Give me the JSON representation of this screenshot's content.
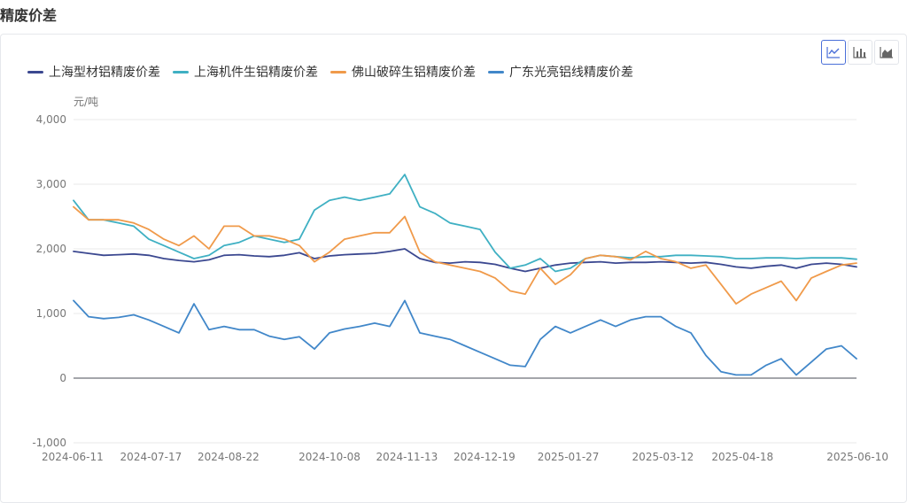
{
  "page": {
    "title": "精废价差"
  },
  "toolbar": {
    "buttons": [
      {
        "name": "line-chart-icon",
        "active": true
      },
      {
        "name": "bar-chart-icon",
        "active": false
      },
      {
        "name": "area-chart-icon",
        "active": false
      }
    ]
  },
  "chart_data": {
    "type": "line",
    "title": "",
    "unit_label": "元/吨",
    "xlabel": "",
    "ylabel": "元/吨",
    "ylim": [
      -1000,
      4000
    ],
    "yticks": [
      -1000,
      0,
      1000,
      2000,
      3000,
      4000
    ],
    "ytick_labels": [
      "-1,000",
      "0",
      "1,000",
      "2,000",
      "3,000",
      "4,000"
    ],
    "xlim": [
      "2024-06-11",
      "2025-06-10"
    ],
    "xtick_labels": [
      "2024-06-11",
      "2024-07-17",
      "2024-08-22",
      "2024-10-08",
      "2024-11-13",
      "2024-12-19",
      "2025-01-27",
      "2025-03-12",
      "2025-04-18",
      "2025-06-10"
    ],
    "grid": true,
    "legend_position": "top-left",
    "x": [
      "2024-06-11",
      "2024-06-18",
      "2024-06-25",
      "2024-07-02",
      "2024-07-09",
      "2024-07-16",
      "2024-07-23",
      "2024-07-30",
      "2024-08-06",
      "2024-08-13",
      "2024-08-20",
      "2024-08-27",
      "2024-09-03",
      "2024-09-10",
      "2024-09-17",
      "2024-09-24",
      "2024-10-01",
      "2024-10-08",
      "2024-10-15",
      "2024-10-22",
      "2024-10-29",
      "2024-11-05",
      "2024-11-12",
      "2024-11-19",
      "2024-11-26",
      "2024-12-03",
      "2024-12-10",
      "2024-12-17",
      "2024-12-24",
      "2024-12-31",
      "2025-01-07",
      "2025-01-14",
      "2025-01-21",
      "2025-01-28",
      "2025-02-04",
      "2025-02-11",
      "2025-02-18",
      "2025-02-25",
      "2025-03-04",
      "2025-03-11",
      "2025-03-18",
      "2025-03-25",
      "2025-04-01",
      "2025-04-08",
      "2025-04-15",
      "2025-04-22",
      "2025-04-29",
      "2025-05-06",
      "2025-05-13",
      "2025-05-20",
      "2025-05-27",
      "2025-06-03",
      "2025-06-10"
    ],
    "series": [
      {
        "name": "上海型材铝精废价差",
        "color": "#3b4890",
        "values": [
          1960,
          1930,
          1900,
          1910,
          1920,
          1900,
          1850,
          1820,
          1800,
          1830,
          1900,
          1910,
          1890,
          1880,
          1900,
          1940,
          1850,
          1890,
          1910,
          1920,
          1930,
          1960,
          2000,
          1850,
          1790,
          1780,
          1800,
          1790,
          1760,
          1700,
          1650,
          1700,
          1750,
          1780,
          1790,
          1800,
          1780,
          1790,
          1790,
          1800,
          1790,
          1780,
          1790,
          1760,
          1720,
          1700,
          1730,
          1750,
          1700,
          1760,
          1780,
          1760,
          1720
        ]
      },
      {
        "name": "上海机件生铝精废价差",
        "color": "#3fb0c3",
        "values": [
          2750,
          2450,
          2450,
          2400,
          2350,
          2150,
          2050,
          1950,
          1850,
          1900,
          2050,
          2100,
          2200,
          2150,
          2100,
          2150,
          2600,
          2750,
          2800,
          2750,
          2800,
          2850,
          3150,
          2650,
          2550,
          2400,
          2350,
          2300,
          1950,
          1700,
          1750,
          1850,
          1650,
          1700,
          1850,
          1900,
          1880,
          1860,
          1880,
          1880,
          1900,
          1900,
          1890,
          1880,
          1850,
          1850,
          1860,
          1860,
          1850,
          1860,
          1860,
          1860,
          1840
        ]
      },
      {
        "name": "佛山破碎生铝精废价差",
        "color": "#f09a4a",
        "values": [
          2650,
          2450,
          2450,
          2450,
          2400,
          2300,
          2150,
          2050,
          2200,
          2000,
          2350,
          2350,
          2200,
          2200,
          2150,
          2050,
          1800,
          1950,
          2150,
          2200,
          2250,
          2250,
          2500,
          1950,
          1800,
          1750,
          1700,
          1650,
          1550,
          1350,
          1300,
          1700,
          1450,
          1600,
          1850,
          1900,
          1880,
          1830,
          1960,
          1850,
          1800,
          1700,
          1750,
          1450,
          1150,
          1300,
          1400,
          1500,
          1200,
          1550,
          1650,
          1750,
          1780
        ]
      },
      {
        "name": "广东光亮铝线精废价差",
        "color": "#4187c9",
        "values": [
          1200,
          950,
          920,
          940,
          980,
          900,
          800,
          700,
          1150,
          750,
          800,
          750,
          750,
          650,
          600,
          640,
          450,
          700,
          760,
          800,
          850,
          800,
          1200,
          700,
          650,
          600,
          500,
          400,
          300,
          200,
          180,
          600,
          800,
          700,
          800,
          900,
          800,
          900,
          950,
          950,
          800,
          700,
          350,
          100,
          50,
          50,
          200,
          300,
          50,
          250,
          450,
          500,
          300
        ]
      }
    ]
  }
}
